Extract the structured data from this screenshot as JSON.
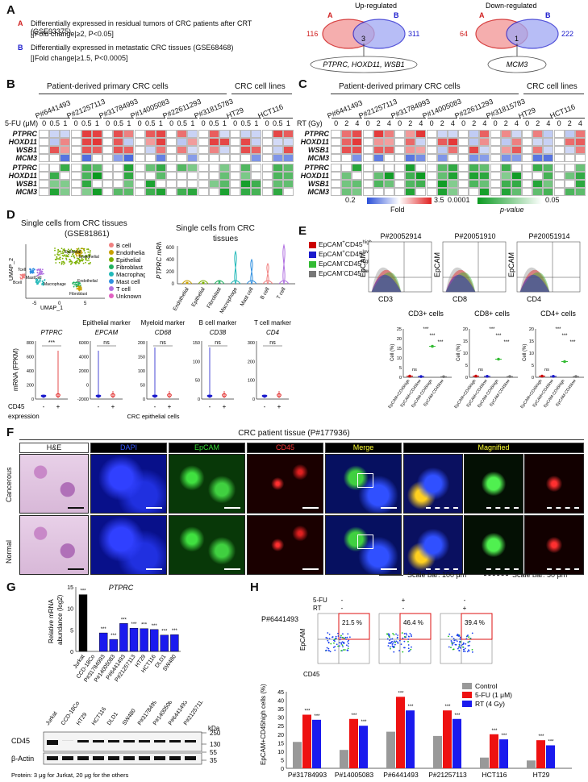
{
  "panelA": {
    "label": "A",
    "legendA_key": "A",
    "legendA_text": "Differentially expressed in residual tumors of CRC patients after CRT (GSE93375)",
    "legendA_sub": "[|Fold change|≥2, P<0.05]",
    "legendB_key": "B",
    "legendB_text": "Differentially expressed in metastatic CRC tissues (GSE68468)",
    "legendB_sub": "[|Fold  change|≥1.5, P<0.0005]",
    "up_title": "Up-regulated",
    "up_a": "116",
    "up_b": "311",
    "up_ab": "3",
    "up_genes": "PTPRC, HOXD11, WSB1",
    "down_title": "Down-regulated",
    "down_a": "64",
    "down_b": "222",
    "down_ab": "1",
    "down_genes": "MCM3",
    "circleA": "A",
    "circleB": "B"
  },
  "panelB": {
    "label": "B",
    "group1": "Patient-derived primary CRC cells",
    "group2": "CRC cell lines",
    "samples": [
      "P#6441493",
      "P#21257113",
      "P#31784993",
      "P#14005083",
      "P#22611293",
      "P#31815783",
      "HT29",
      "HCT116"
    ],
    "dose_label": "5-FU (μM)",
    "doses": [
      "0",
      "0.5",
      "1"
    ],
    "genes": [
      "PTPRC",
      "HOXD11",
      "WSB1",
      "MCM3"
    ]
  },
  "panelC": {
    "label": "C",
    "group1": "Patient-derived primary CRC cells",
    "group2": "CRC cell lines",
    "samples": [
      "P#6441493",
      "P#21257113",
      "P#31784993",
      "P#14005083",
      "P#22611293",
      "P#31815783",
      "HT29",
      "HCT116"
    ],
    "dose_label": "RT (Gy)",
    "doses": [
      "0",
      "2",
      "4"
    ],
    "genes": [
      "PTPRC",
      "HOXD11",
      "WSB1",
      "MCM3"
    ],
    "fold_min": "0.2",
    "fold_max": "3.5",
    "fold_label": "Fold",
    "p_min": "0.0001",
    "p_max": "0.05",
    "p_label": "p-value"
  },
  "panelD": {
    "label": "D",
    "umap_title": "Single cells from CRC tissues",
    "umap_sub": "(GSE81861)",
    "umap_x": "UMAP_1",
    "umap_y": "UMAP_2",
    "umap_ticks_x": [
      "-5",
      "0",
      "5"
    ],
    "umap_ticks_y": [
      "-5",
      "0",
      "5"
    ],
    "cell_types": [
      "B cell",
      "Endothelial",
      "Epithelial",
      "Fibroblast",
      "Macrophage",
      "Mast cell",
      "T cell",
      "Unknown"
    ],
    "cell_colors": [
      "#f08080",
      "#c8a000",
      "#7cb000",
      "#20b060",
      "#20b8b8",
      "#3090e0",
      "#b070e0",
      "#e060c0"
    ],
    "umap_labels": [
      "Epithelial",
      "Endothelial",
      "Tcell",
      "MastCell",
      "Bcell",
      "Macrophage",
      "Endothelial",
      "Fibroblast"
    ],
    "violin_title": "Single cells from CRC",
    "violin_title2": "tissues",
    "violin_ylabel": "PTPRC mRNA (FPKM)",
    "violin_yticks": [
      "0",
      "200",
      "400",
      "600"
    ],
    "violin_groups": [
      "Endothelial",
      "Epithelial",
      "Fibroblast",
      "Macrophage",
      "Mast cell",
      "B cell",
      "T cell"
    ],
    "marker_headers": [
      "",
      "Epithelial marker",
      "Myeloid marker",
      "B cell marker",
      "T cell marker"
    ],
    "marker_genes": [
      "PTPRC",
      "EPCAM",
      "CD68",
      "CD38",
      "CD4"
    ],
    "marker_sig": [
      "***",
      "ns",
      "ns",
      "ns",
      "ns"
    ],
    "mrna_label": "mRNA (FPKM)",
    "cd45_label": "CD45",
    "expression_label": "expression",
    "minus": "-",
    "plus": "+",
    "footer": "CRC epithelial cells",
    "yticks_ptprc": [
      "0",
      "200",
      "400",
      "600",
      "800"
    ],
    "yticks_epcam": [
      "-2000",
      "0",
      "2000",
      "4000",
      "6000"
    ],
    "yticks_cd68": [
      "0",
      "50",
      "100",
      "150",
      "200"
    ],
    "yticks_cd38": [
      "0",
      "50",
      "100",
      "150"
    ],
    "yticks_cd4": [
      "0",
      "100",
      "200",
      "300"
    ]
  },
  "panelE": {
    "label": "E",
    "legend": [
      "EpCAM+CD45high",
      "EpCAM+CD45low",
      "EpCAM-CD45high",
      "EpCAM-CD45low"
    ],
    "legend_base": [
      "EpCAM",
      "EpCAM",
      "EpCAM",
      "EpCAM"
    ],
    "legend_s1": [
      "+",
      "+",
      "-",
      "-"
    ],
    "legend_mid": [
      "CD45",
      "CD45",
      "CD45",
      "CD45"
    ],
    "legend_s2": [
      "high",
      "low",
      "high",
      "low"
    ],
    "legend_colors": [
      "#cc0000",
      "#1a1acc",
      "#33bb33",
      "#777777"
    ],
    "patients": [
      "P#20052914",
      "P#20051910",
      "P#20051914"
    ],
    "flow_x": [
      "CD3",
      "CD8",
      "CD4"
    ],
    "flow_y": "EpCAM",
    "bar_titles": [
      "CD3+ cells",
      "CD8+ cells",
      "CD4+ cells"
    ],
    "bar_ylabel": "Cell (%)",
    "bar_yticks": [
      [
        "0",
        "5",
        "10",
        "15",
        "20",
        "25"
      ],
      [
        "0",
        "5",
        "10",
        "15",
        "20"
      ],
      [
        "0",
        "5",
        "10",
        "15",
        "20"
      ]
    ],
    "bar_sig": [
      "ns",
      "ns",
      "***",
      "***",
      "***",
      "***"
    ],
    "bar_xlabels": [
      "EpCAM+CD45high",
      "EpCAM+CD45low",
      "EpCAM-CD45high",
      "EpCAM-CD45low"
    ],
    "bar_values": [
      [
        0.6,
        0.4,
        16,
        0.3
      ],
      [
        0.5,
        0.4,
        7.5,
        0.3
      ],
      [
        0.5,
        0.4,
        6.5,
        0.3
      ]
    ]
  },
  "panelF": {
    "label": "F",
    "title": "CRC patient tissue (P#177936)",
    "channels": [
      "H&E",
      "DAPI",
      "EpCAM",
      "CD45",
      "Merge",
      "Magnified"
    ],
    "rows": [
      "Cancerous",
      "Normal"
    ],
    "scale_solid": "Scale bar: 100 μm",
    "scale_dash": "Scale bar: 50 μm"
  },
  "panelG": {
    "label": "G",
    "title": "PTPRC",
    "ylabel": "Relative mRNA",
    "ylabel2": "abundance (log2)",
    "yticks": [
      "0",
      "5",
      "10",
      "15"
    ],
    "ymax": 15,
    "categories": [
      "Jurkat",
      "CCD-18Co",
      "P#31784993",
      "P#14005083",
      "P#6441493",
      "P#21257113",
      "HT29",
      "HCT116",
      "DLD1",
      "SW480"
    ],
    "values": [
      13.2,
      0,
      4.3,
      2.8,
      6.5,
      5.4,
      5.3,
      5.1,
      3.8,
      3.9
    ],
    "sig": [
      "***",
      "",
      "***",
      "***",
      "***",
      "***",
      "***",
      "***",
      "***",
      "***"
    ],
    "blot_lanes": [
      "Jurkat",
      "CCD-18Co",
      "HT29",
      "HCT116",
      "DLD1",
      "SW480",
      "P#31784993",
      "P#14005083",
      "P#6441493",
      "P#21257113"
    ],
    "blot_rows": [
      "CD45",
      "β-Actin"
    ],
    "kda_label": "kDa",
    "kda": [
      "250",
      "130",
      "55",
      "35"
    ],
    "footnote": "Protein:  3 μg for Jurkat, 20 μg for the others"
  },
  "panelH": {
    "label": "H",
    "patient": "P#6441493",
    "treat_rows": [
      "5-FU",
      "RT"
    ],
    "treat_marks": [
      [
        "-",
        "+",
        "-"
      ],
      [
        "-",
        "-",
        "+"
      ]
    ],
    "gate_values": [
      "21.5 %",
      "46.4 %",
      "39.4 %"
    ],
    "flow_y": "EpCAM",
    "flow_x": "CD45",
    "legend": [
      "Control",
      "5-FU (1 μM)",
      "RT (4 Gy)"
    ],
    "legend_colors": [
      "#999999",
      "#ee1111",
      "#1a1aee"
    ],
    "ylabel": "EpCAM+CD45high cells (%)",
    "yticks": [
      "0",
      "5",
      "10",
      "15",
      "20",
      "25",
      "30",
      "35",
      "40",
      "45"
    ],
    "ymax": 45,
    "categories": [
      "P#31784993",
      "P#14005083",
      "P#6441493",
      "P#21257113",
      "HCT116",
      "HT29"
    ],
    "series": [
      {
        "name": "Control",
        "values": [
          15.5,
          10.8,
          21.5,
          19,
          6.3,
          4.6
        ]
      },
      {
        "name": "5-FU (1 μM)",
        "values": [
          31.5,
          29,
          42,
          34,
          20,
          16.5
        ]
      },
      {
        "name": "RT (4 Gy)",
        "values": [
          28.5,
          25,
          34,
          29,
          17,
          13.5
        ]
      }
    ],
    "sig": "***"
  },
  "chart_data": [
    {
      "type": "bar",
      "title": "PTPRC",
      "ylabel": "Relative mRNA abundance (log2)",
      "categories": [
        "Jurkat",
        "CCD-18Co",
        "P#31784993",
        "P#14005083",
        "P#6441493",
        "P#21257113",
        "HT29",
        "HCT116",
        "DLD1",
        "SW480"
      ],
      "values": [
        13.2,
        0,
        4.3,
        2.8,
        6.5,
        5.4,
        5.3,
        5.1,
        3.8,
        3.9
      ],
      "ylim": [
        0,
        15
      ]
    },
    {
      "type": "bar",
      "ylabel": "EpCAM+CD45high cells (%)",
      "categories": [
        "P#31784993",
        "P#14005083",
        "P#6441493",
        "P#21257113",
        "HCT116",
        "HT29"
      ],
      "series": [
        {
          "name": "Control",
          "values": [
            15.5,
            10.8,
            21.5,
            19,
            6.3,
            4.6
          ]
        },
        {
          "name": "5-FU (1 μM)",
          "values": [
            31.5,
            29,
            42,
            34,
            20,
            16.5
          ]
        },
        {
          "name": "RT (4 Gy)",
          "values": [
            28.5,
            25,
            34,
            29,
            17,
            13.5
          ]
        }
      ],
      "ylim": [
        0,
        45
      ]
    }
  ]
}
